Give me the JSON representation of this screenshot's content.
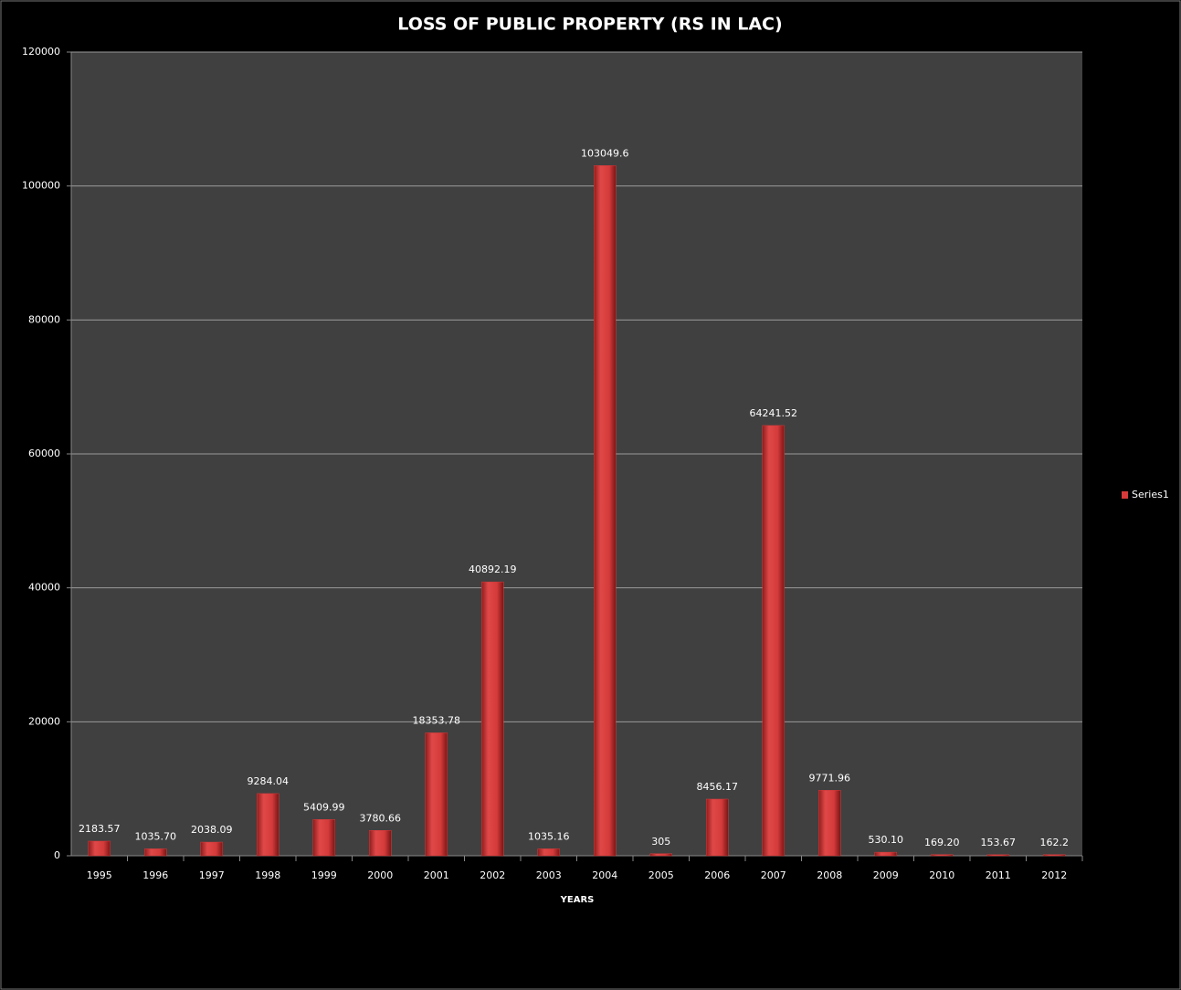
{
  "chart_data": {
    "type": "bar",
    "title": "LOSS OF PUBLIC PROPERTY (RS IN LAC)",
    "x_label": "YEARS",
    "categories": [
      "1995",
      "1996",
      "1997",
      "1998",
      "1999",
      "2000",
      "2001",
      "2002",
      "2003",
      "2004",
      "2005",
      "2006",
      "2007",
      "2008",
      "2009",
      "2010",
      "2011",
      "2012"
    ],
    "series": [
      {
        "name": "Series1",
        "color": "#d63a3a",
        "values": [
          2183.57,
          1035.7,
          2038.09,
          9284.04,
          5409.99,
          3780.66,
          18353.78,
          40892.19,
          1035.16,
          103049.6,
          305,
          8456.17,
          64241.52,
          9771.96,
          530.1,
          169.2,
          153.67,
          162.2
        ],
        "value_labels": [
          "2183.57",
          "1035.70",
          "2038.09",
          "9284.04",
          "5409.99",
          "3780.66",
          "18353.78",
          "40892.19",
          "1035.16",
          "103049.6",
          "305",
          "8456.17",
          "64241.52",
          "9771.96",
          "530.10",
          "169.20",
          "153.67",
          "162.2"
        ]
      }
    ],
    "ylim": [
      0,
      120000
    ],
    "yticks": [
      0,
      20000,
      40000,
      60000,
      80000,
      100000,
      120000
    ],
    "grid": true,
    "legend": "right"
  }
}
